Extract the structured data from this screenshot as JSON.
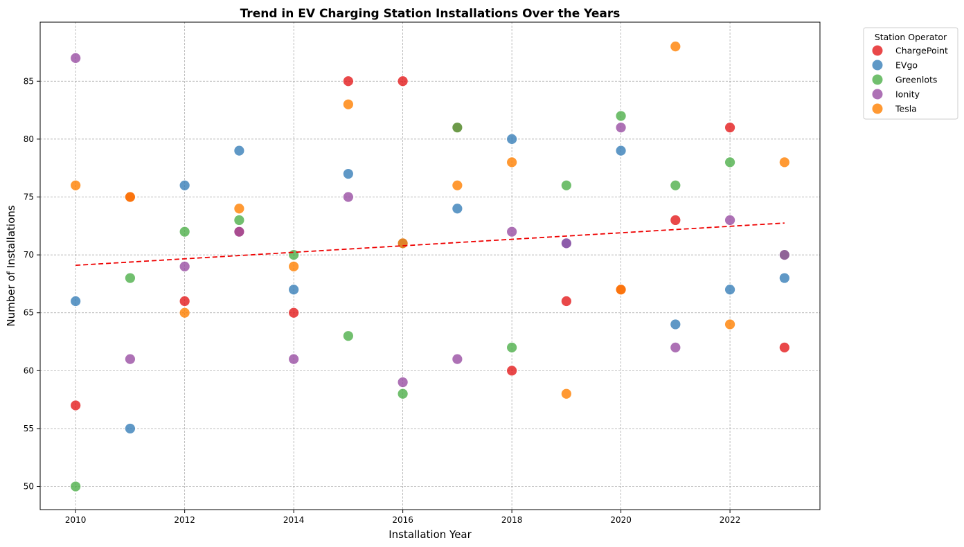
{
  "chart_data": {
    "type": "scatter",
    "title": "Trend in EV Charging Station Installations Over the Years",
    "xlabel": "Installation Year",
    "ylabel": "Number of Installations",
    "xlim": [
      2009.35,
      2023.65
    ],
    "ylim": [
      48.0,
      90.1
    ],
    "x_ticks": [
      2010,
      2012,
      2014,
      2016,
      2018,
      2020,
      2022
    ],
    "y_ticks": [
      50,
      55,
      60,
      65,
      70,
      75,
      80,
      85
    ],
    "grid": true,
    "legend": {
      "title": "Station Operator",
      "placement": "outside-top-right"
    },
    "series": [
      {
        "name": "ChargePoint",
        "color": "#e41a1c",
        "points": [
          [
            2010,
            57
          ],
          [
            2011,
            75
          ],
          [
            2012,
            66
          ],
          [
            2013,
            72
          ],
          [
            2014,
            65
          ],
          [
            2015,
            85
          ],
          [
            2016,
            85
          ],
          [
            2017,
            81
          ],
          [
            2018,
            60
          ],
          [
            2019,
            66
          ],
          [
            2020,
            67
          ],
          [
            2021,
            73
          ],
          [
            2022,
            81
          ],
          [
            2023,
            62
          ]
        ]
      },
      {
        "name": "EVgo",
        "color": "#377eb8",
        "points": [
          [
            2010,
            66
          ],
          [
            2011,
            55
          ],
          [
            2012,
            76
          ],
          [
            2013,
            79
          ],
          [
            2014,
            67
          ],
          [
            2015,
            77
          ],
          [
            2016,
            71
          ],
          [
            2017,
            74
          ],
          [
            2018,
            80
          ],
          [
            2019,
            71
          ],
          [
            2020,
            79
          ],
          [
            2021,
            64
          ],
          [
            2022,
            67
          ],
          [
            2023,
            68
          ]
        ]
      },
      {
        "name": "Greenlots",
        "color": "#4daf4a",
        "points": [
          [
            2010,
            50
          ],
          [
            2011,
            68
          ],
          [
            2012,
            72
          ],
          [
            2013,
            73
          ],
          [
            2014,
            70
          ],
          [
            2015,
            63
          ],
          [
            2016,
            58
          ],
          [
            2017,
            81
          ],
          [
            2018,
            62
          ],
          [
            2019,
            76
          ],
          [
            2020,
            82
          ],
          [
            2021,
            76
          ],
          [
            2022,
            78
          ],
          [
            2023,
            70
          ]
        ]
      },
      {
        "name": "Ionity",
        "color": "#984ea3",
        "points": [
          [
            2010,
            87
          ],
          [
            2011,
            61
          ],
          [
            2012,
            69
          ],
          [
            2013,
            72
          ],
          [
            2014,
            61
          ],
          [
            2015,
            75
          ],
          [
            2016,
            59
          ],
          [
            2017,
            61
          ],
          [
            2018,
            72
          ],
          [
            2019,
            71
          ],
          [
            2020,
            81
          ],
          [
            2021,
            62
          ],
          [
            2022,
            73
          ],
          [
            2023,
            70
          ]
        ]
      },
      {
        "name": "Tesla",
        "color": "#ff7f00",
        "points": [
          [
            2010,
            76
          ],
          [
            2011,
            75
          ],
          [
            2012,
            65
          ],
          [
            2013,
            74
          ],
          [
            2014,
            69
          ],
          [
            2015,
            83
          ],
          [
            2016,
            71
          ],
          [
            2017,
            76
          ],
          [
            2018,
            78
          ],
          [
            2019,
            58
          ],
          [
            2020,
            67
          ],
          [
            2021,
            88
          ],
          [
            2022,
            64
          ],
          [
            2023,
            78
          ]
        ]
      }
    ],
    "trend_line": {
      "color": "#ee0000",
      "style": "dashed",
      "x": [
        2010,
        2023
      ],
      "y": [
        69.1,
        72.75
      ]
    }
  }
}
